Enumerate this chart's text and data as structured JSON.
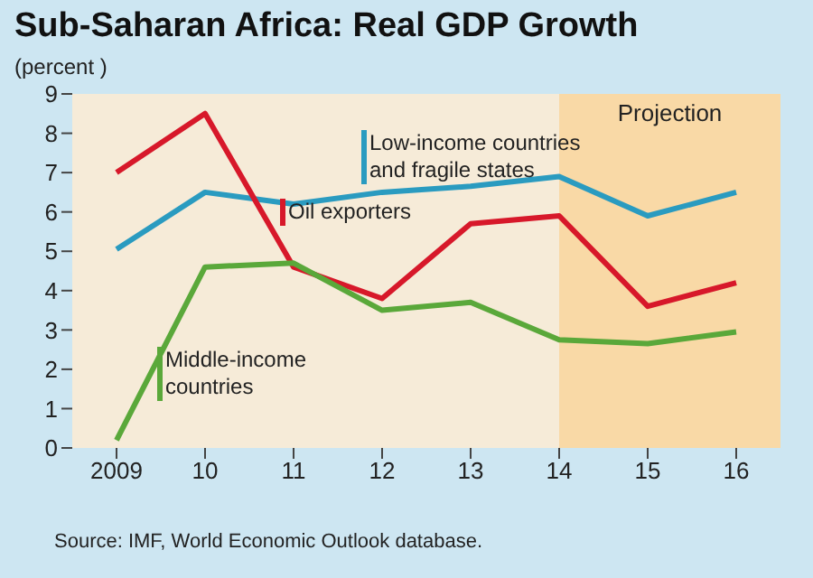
{
  "chart_data": {
    "type": "line",
    "title": "Sub-Saharan Africa: Real GDP Growth",
    "ylabel": "(percent )",
    "x": [
      2009,
      2010,
      2011,
      2012,
      2013,
      2014,
      2015,
      2016
    ],
    "xlim": [
      2008.5,
      2016.5
    ],
    "xticks": [
      {
        "value": 2009,
        "label": "2009"
      },
      {
        "value": 2010,
        "label": "10"
      },
      {
        "value": 2011,
        "label": "11"
      },
      {
        "value": 2012,
        "label": "12"
      },
      {
        "value": 2013,
        "label": "13"
      },
      {
        "value": 2014,
        "label": "14"
      },
      {
        "value": 2015,
        "label": "15"
      },
      {
        "value": 2016,
        "label": "16"
      }
    ],
    "ylim": [
      0,
      9
    ],
    "yticks": [
      0,
      1,
      2,
      3,
      4,
      5,
      6,
      7,
      8,
      9
    ],
    "series": [
      {
        "name": "Low-income countries and fragile states",
        "color": "#2a9bc0",
        "values": [
          5.05,
          6.5,
          6.2,
          6.5,
          6.65,
          6.9,
          5.9,
          6.5
        ]
      },
      {
        "name": "Oil exporters",
        "color": "#d7182a",
        "values": [
          7.0,
          8.5,
          4.6,
          3.8,
          5.7,
          5.9,
          3.6,
          4.2
        ]
      },
      {
        "name": "Middle-income countries",
        "color": "#5aa83a",
        "values": [
          0.2,
          4.6,
          4.7,
          3.5,
          3.7,
          2.75,
          2.65,
          2.95
        ]
      }
    ],
    "bands": [
      {
        "axis": "x",
        "from": 2014,
        "to": 2016.5,
        "label": "Projection",
        "color": "#f9d9a6"
      }
    ],
    "annotations": [
      "Source: IMF, World Economic Outlook database."
    ],
    "grid": false,
    "marker": "none",
    "line_style": "solid"
  }
}
